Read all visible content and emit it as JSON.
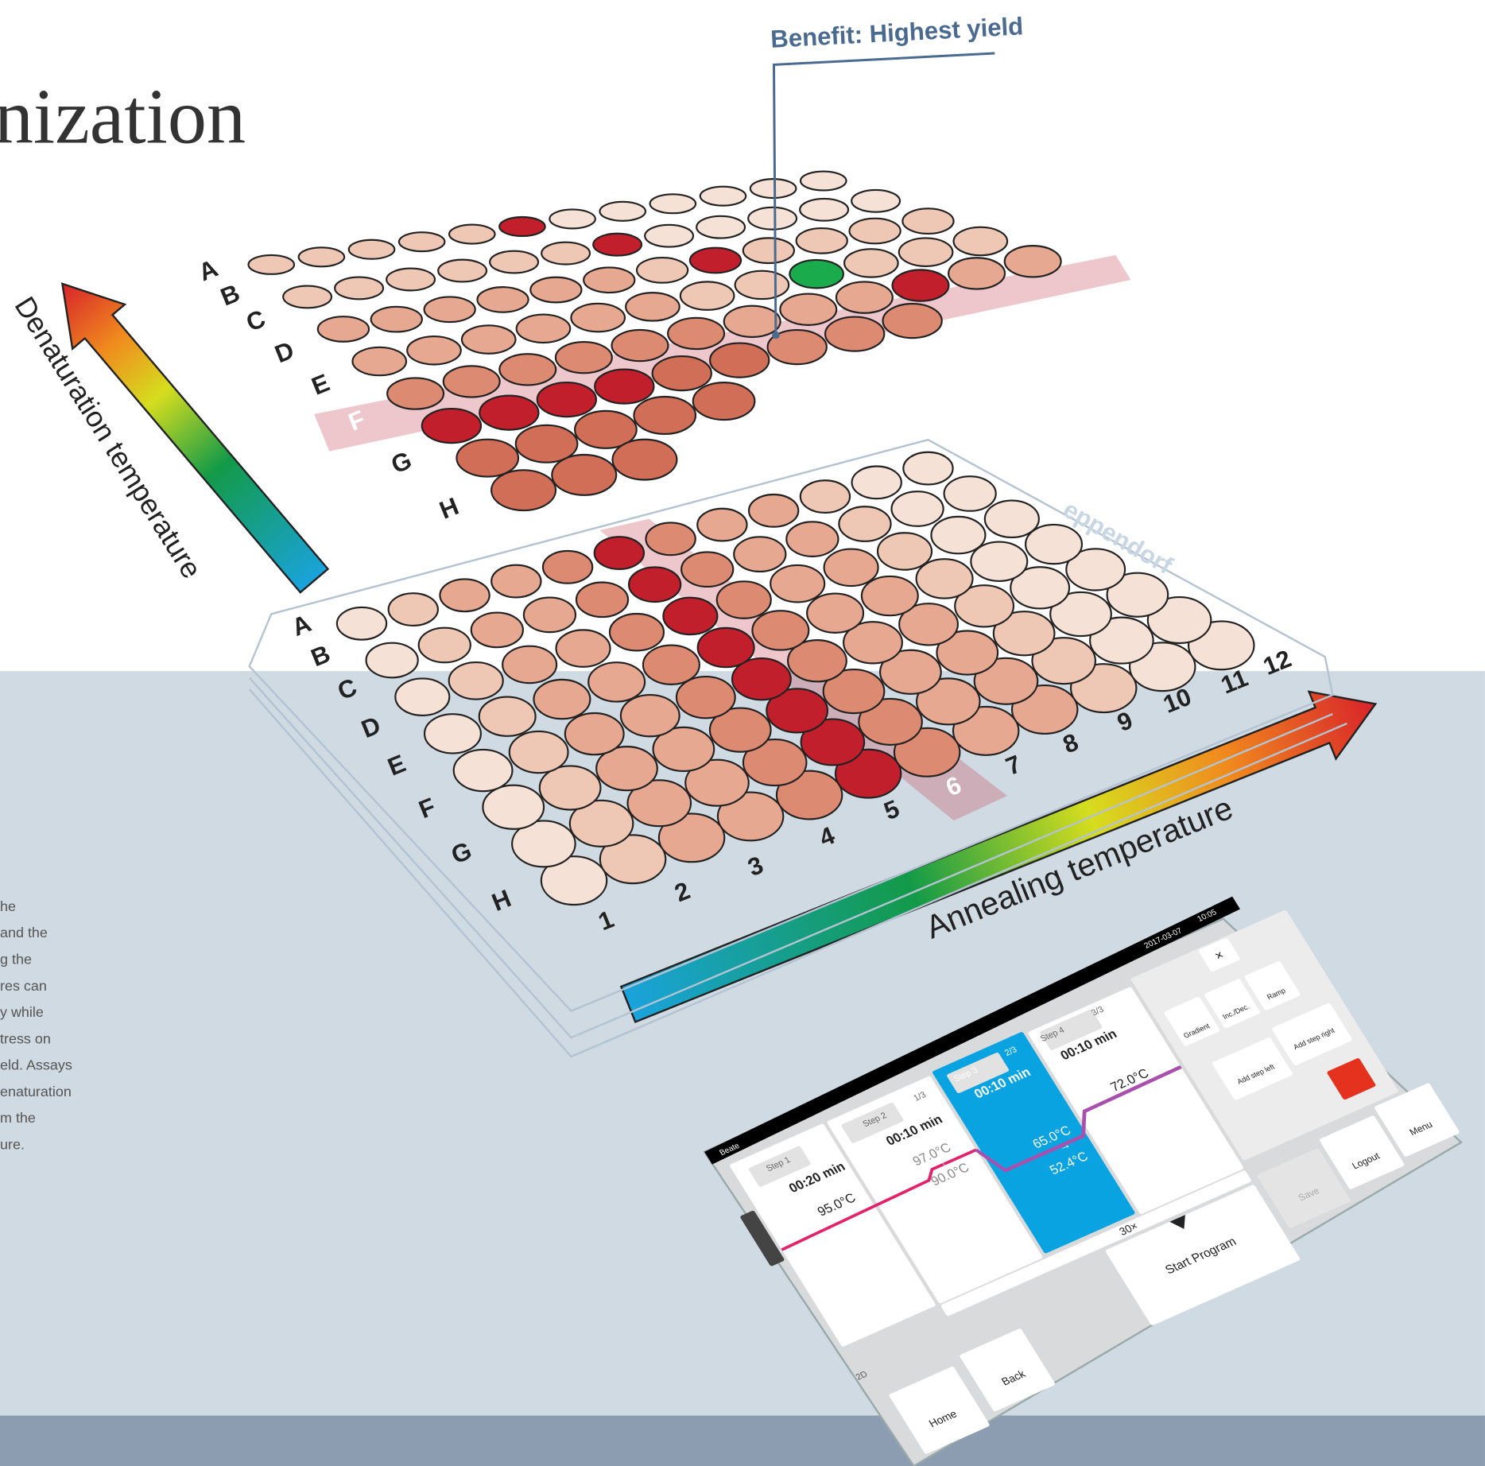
{
  "title_fragment": "nization",
  "callout": "Benefit: Highest yield",
  "denaturation_label": "Denaturation temperature",
  "annealing_label": "Annealing temperature",
  "brand": "eppendorf",
  "body_text": [
    "he",
    "and the",
    "g the",
    "res can",
    "y while",
    "tress on",
    "eld. Assays",
    "enaturation",
    "m the",
    "ure."
  ],
  "top_plate": {
    "row_labels": [
      "A",
      "B",
      "C",
      "D",
      "E",
      "F",
      "G",
      "H"
    ]
  },
  "bottom_plate": {
    "row_labels": [
      "A",
      "B",
      "C",
      "D",
      "E",
      "F",
      "G",
      "H"
    ],
    "column_labels": [
      "1",
      "2",
      "3",
      "4",
      "5",
      "6",
      "7",
      "8",
      "9",
      "10",
      "11",
      "12"
    ]
  },
  "screen": {
    "user": "Beate",
    "date": "2017-03-07",
    "time": "10:05",
    "close": "×",
    "steps": [
      {
        "name": "Step 1",
        "time": "00:20 min",
        "temp": "95.0°C"
      },
      {
        "name": "Step 2",
        "cycle": "1/3",
        "time": "00:10 min",
        "temp_start": "97.0°C",
        "arrow": "↑",
        "temp_end": "90.0°C"
      },
      {
        "name": "Step 3",
        "cycle": "2/3",
        "time": "00:10 min",
        "temp_start": "65.0°C",
        "arrow": "→",
        "temp_end": "52.4°C"
      },
      {
        "name": "Step 4",
        "cycle": "3/3",
        "time": "00:10 min",
        "temp": "72.0°C"
      }
    ],
    "cycles": "30×",
    "tools": [
      "Gradient",
      "Inc./Dec.",
      "Ramp",
      "Add step left",
      "Add step right"
    ],
    "start": "Start Program",
    "save": "Save",
    "logout": "Logout",
    "menu": "Menu",
    "home": "Home",
    "back": "Back",
    "view": "2D"
  }
}
